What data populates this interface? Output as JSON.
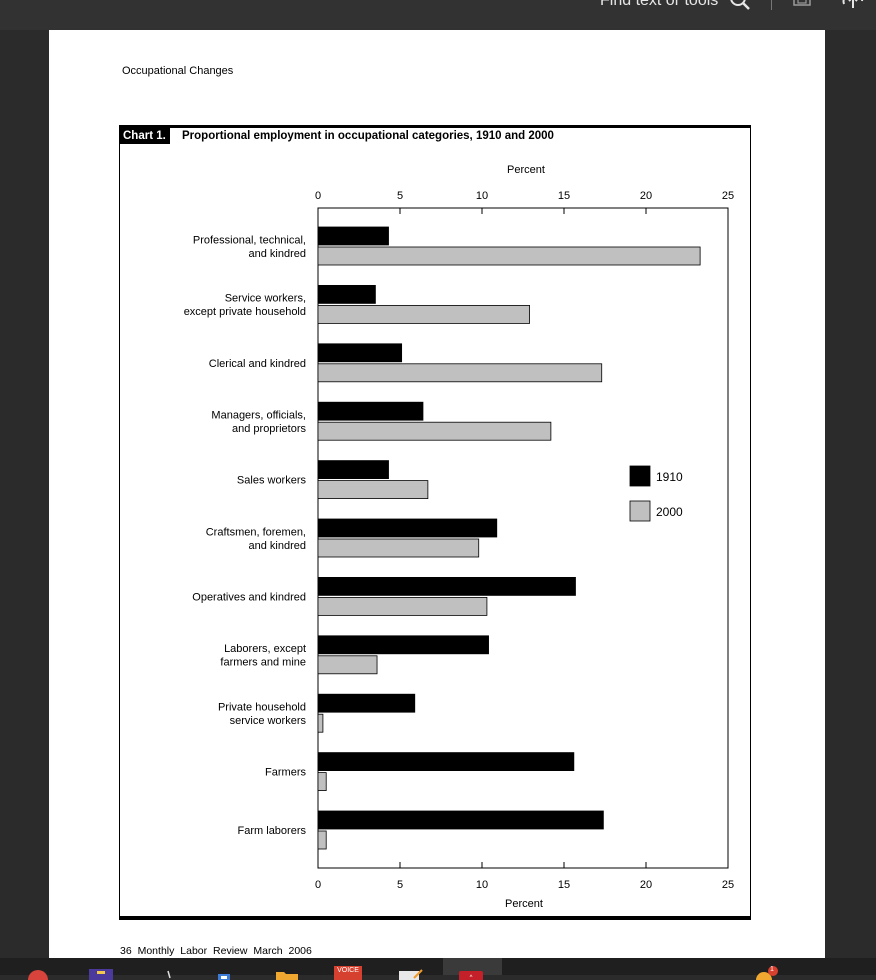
{
  "viewer": {
    "find_placeholder": "Find text or tools"
  },
  "page": {
    "header": "Occupational Changes",
    "footer": "36   Monthly  Labor  Review     March  2006"
  },
  "chart": {
    "label": "Chart 1.",
    "title": "Proportional employment in occupational categories, 1910 and 2000"
  },
  "chart_data": {
    "type": "bar",
    "orientation": "horizontal",
    "title": "Proportional employment in occupational categories, 1910 and 2000",
    "xlabel": "Percent",
    "xlim": [
      0,
      25
    ],
    "xticks": [
      0,
      5,
      10,
      15,
      20,
      25
    ],
    "grid": false,
    "legend_position": "right",
    "categories": [
      [
        "Professional, technical,",
        "and kindred"
      ],
      [
        "Service workers,",
        "except private household"
      ],
      [
        "Clerical and kindred"
      ],
      [
        "Managers, officials,",
        "and proprietors"
      ],
      [
        "Sales workers"
      ],
      [
        "Craftsmen, foremen,",
        "and kindred"
      ],
      [
        "Operatives and kindred"
      ],
      [
        "Laborers, except",
        "farmers and mine"
      ],
      [
        "Private household",
        "service workers"
      ],
      [
        "Farmers"
      ],
      [
        "Farm laborers"
      ]
    ],
    "series": [
      {
        "name": "1910",
        "color": "#000000",
        "values": [
          4.3,
          3.5,
          5.1,
          6.4,
          4.3,
          10.9,
          15.7,
          10.4,
          5.9,
          15.6,
          17.4
        ]
      },
      {
        "name": "2000",
        "color": "#c0c0c0",
        "values": [
          23.3,
          12.9,
          17.3,
          14.2,
          6.7,
          9.8,
          10.3,
          3.6,
          0.3,
          0.5,
          0.5
        ]
      }
    ]
  },
  "taskbar": {
    "voice_label": "VOICE",
    "badge_count": "1"
  }
}
